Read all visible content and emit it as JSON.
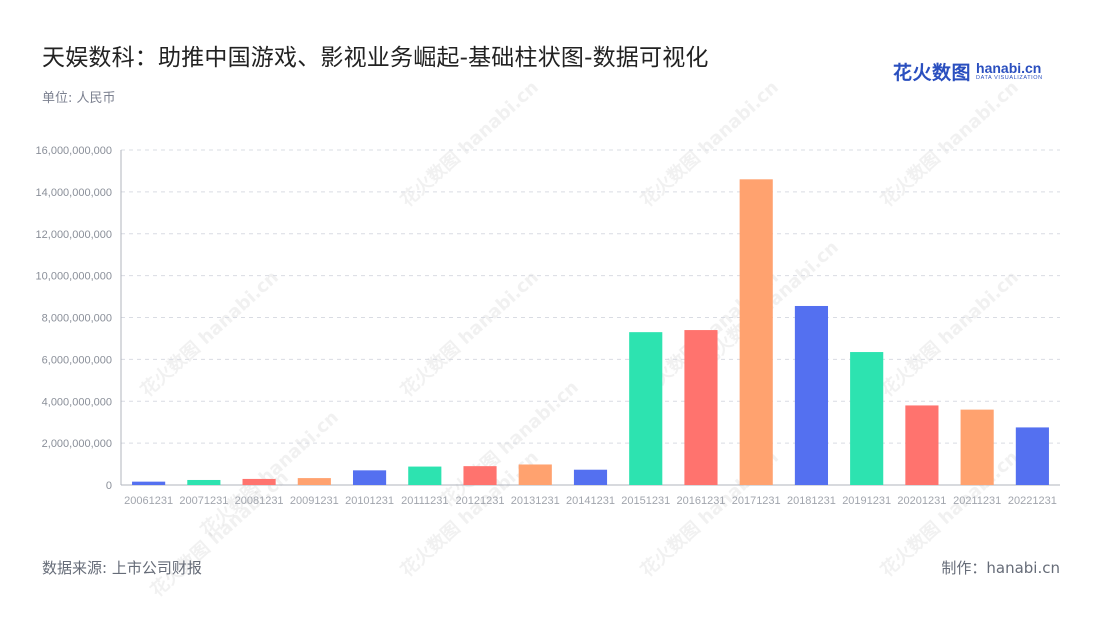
{
  "header": {
    "title": "天娱数科：助推中国游戏、影视业务崛起-基础柱状图-数据可视化",
    "unit": "单位: 人民币"
  },
  "logo": {
    "cn": "花火数图",
    "en": "hanabi.cn",
    "en_sub": "DATA VISUALIZATION"
  },
  "footer": {
    "source": "数据来源: 上市公司财报",
    "credit": "制作：hanabi.cn"
  },
  "watermark": {
    "cn": "花火数图",
    "en": "hanabi.cn"
  },
  "chart_data": {
    "type": "bar",
    "categories": [
      "20061231",
      "20071231",
      "20081231",
      "20091231",
      "20101231",
      "20111231",
      "20121231",
      "20131231",
      "20141231",
      "20151231",
      "20161231",
      "20171231",
      "20181231",
      "20191231",
      "20201231",
      "20211231",
      "20221231"
    ],
    "values": [
      160000000,
      240000000,
      290000000,
      330000000,
      700000000,
      880000000,
      900000000,
      980000000,
      730000000,
      7300000000,
      7400000000,
      14600000000,
      8550000000,
      6350000000,
      3800000000,
      3600000000,
      2750000000
    ],
    "colors": [
      "#5470f0",
      "#2de3b0",
      "#ff736e",
      "#ffa26f",
      "#5470f0",
      "#2de3b0",
      "#ff736e",
      "#ffa26f",
      "#5470f0",
      "#2de3b0",
      "#ff736e",
      "#ffa26f",
      "#5470f0",
      "#2de3b0",
      "#ff736e",
      "#ffa26f",
      "#5470f0"
    ],
    "ylim": [
      0,
      16000000000
    ],
    "yticks": [
      0,
      2000000000,
      4000000000,
      6000000000,
      8000000000,
      10000000000,
      12000000000,
      14000000000,
      16000000000
    ],
    "ytick_labels": [
      "0",
      "2,000,000,000",
      "4,000,000,000",
      "6,000,000,000",
      "8,000,000,000",
      "10,000,000,000",
      "12,000,000,000",
      "14,000,000,000",
      "16,000,000,000"
    ],
    "grid": true,
    "legend": "none"
  }
}
